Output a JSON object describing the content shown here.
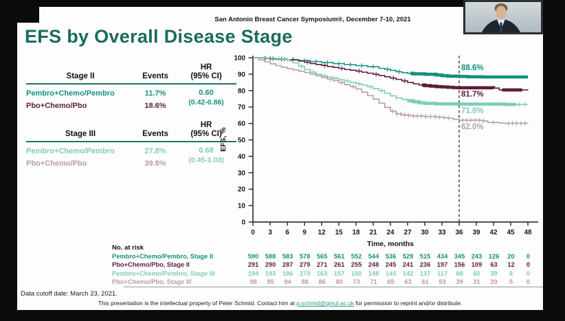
{
  "conference_header": "San Antonio Breast Cancer Symposium®, December 7-10, 2021",
  "slide_title": "EFS by Overall Disease Stage",
  "colors": {
    "title_teal": "#1a6b5e",
    "pembro_stage2": "#12917e",
    "pbo_stage2": "#5a1f3c",
    "pembro_stage3": "#7fccb8",
    "pbo_stage3": "#b49dab",
    "link": "#24a08d"
  },
  "hr_tables": [
    {
      "stage_label": "Stage II",
      "events_header": "Events",
      "hr_header_line1": "HR",
      "hr_header_line2": "(95% CI)",
      "rows": [
        {
          "label": "Pembro+Chemo/Pembro",
          "events": "11.7%",
          "color": "#12917e"
        },
        {
          "label": "Pbo+Chemo/Pbo",
          "events": "18.6%",
          "color": "#5a1f3c"
        }
      ],
      "hr_value": "0.60",
      "hr_ci": "(0.42-0.86)",
      "hr_color": "#12917e"
    },
    {
      "stage_label": "Stage III",
      "events_header": "Events",
      "hr_header_line1": "HR",
      "hr_header_line2": "(95% CI)",
      "rows": [
        {
          "label": "Pembro+Chemo/Pembro",
          "events": "27.8%",
          "color": "#7fccb8"
        },
        {
          "label": "Pbo+Chemo/Pbo",
          "events": "39.8%",
          "color": "#b49dab"
        }
      ],
      "hr_value": "0.68",
      "hr_ci": "(0.45-1.03)",
      "hr_color": "#7fccb8"
    }
  ],
  "chart_data": {
    "type": "line",
    "subtype": "kaplan_meier_step",
    "title": "",
    "xlabel": "Time, months",
    "ylabel": "EFS, %",
    "xlim": [
      0,
      48
    ],
    "ylim": [
      0,
      100
    ],
    "xticks": [
      0,
      3,
      6,
      9,
      12,
      15,
      18,
      21,
      24,
      27,
      30,
      33,
      36,
      39,
      42,
      45,
      48
    ],
    "yticks": [
      0,
      10,
      20,
      30,
      40,
      50,
      60,
      70,
      80,
      90,
      100
    ],
    "grid": false,
    "reference_line_x": 36,
    "series": [
      {
        "name": "Pembro+Chemo/Pembro, Stage II",
        "color": "#12917e",
        "rate_at_36": 88.6,
        "rate_label": "88.6%",
        "label_side": "above",
        "points": [
          [
            0,
            100
          ],
          [
            2,
            99.7
          ],
          [
            3,
            99.4
          ],
          [
            5,
            99.1
          ],
          [
            6,
            98.8
          ],
          [
            8,
            98.3
          ],
          [
            10,
            97.7
          ],
          [
            12,
            97.1
          ],
          [
            14,
            96.4
          ],
          [
            16,
            95.8
          ],
          [
            18,
            95.2
          ],
          [
            20,
            94.5
          ],
          [
            22,
            93.5
          ],
          [
            23,
            93
          ],
          [
            24,
            92.3
          ],
          [
            25,
            91.5
          ],
          [
            26,
            90.9
          ],
          [
            27,
            90.5
          ],
          [
            28,
            90.2
          ],
          [
            30,
            89.9
          ],
          [
            32,
            89.5
          ],
          [
            33,
            89.1
          ],
          [
            34,
            88.8
          ],
          [
            36,
            88.6
          ],
          [
            37.5,
            88.4
          ],
          [
            40,
            88.3
          ],
          [
            48,
            88.3
          ]
        ],
        "censor_ticks": [
          2.2,
          3.5,
          4.5,
          5.5,
          7,
          9,
          11,
          13,
          15,
          17,
          19,
          21,
          23.5,
          25.5
        ],
        "thick_segments": [
          [
            27.5,
            48
          ]
        ]
      },
      {
        "name": "Pbo+Chemo/Pbo, Stage II",
        "color": "#5a1f3c",
        "rate_at_36": 81.7,
        "rate_label": "81.7%",
        "label_side": "below",
        "points": [
          [
            0,
            100
          ],
          [
            2,
            99.6
          ],
          [
            4,
            99.2
          ],
          [
            6,
            98.7
          ],
          [
            8,
            98
          ],
          [
            9,
            97.3
          ],
          [
            10,
            96.5
          ],
          [
            11,
            95.9
          ],
          [
            12,
            95.3
          ],
          [
            13,
            94.7
          ],
          [
            14,
            94.1
          ],
          [
            15,
            93.5
          ],
          [
            16,
            92.9
          ],
          [
            17,
            92.4
          ],
          [
            18,
            91.9
          ],
          [
            19,
            91.2
          ],
          [
            20,
            90.6
          ],
          [
            21,
            89.9
          ],
          [
            22,
            89.2
          ],
          [
            23,
            88.4
          ],
          [
            24,
            87.6
          ],
          [
            25,
            86.8
          ],
          [
            26,
            85.9
          ],
          [
            27,
            85
          ],
          [
            28,
            84.1
          ],
          [
            29,
            83.4
          ],
          [
            30,
            83
          ],
          [
            31,
            82.7
          ],
          [
            32,
            82.4
          ],
          [
            33,
            82.2
          ],
          [
            34,
            82
          ],
          [
            35,
            81.8
          ],
          [
            36,
            81.7
          ],
          [
            42,
            81.5
          ],
          [
            43,
            80.4
          ],
          [
            48,
            80.3
          ]
        ],
        "censor_ticks": [
          3,
          5,
          7,
          9.5,
          12.5,
          15.5,
          18.5,
          21.5,
          24.5,
          26.5
        ],
        "thick_segments": [
          [
            29.5,
            42
          ],
          [
            43.5,
            47
          ]
        ]
      },
      {
        "name": "Pembro+Chemo/Pembro, Stage III",
        "color": "#7fccb8",
        "rate_at_36": 71.8,
        "rate_label": "71.8%",
        "label_side": "below",
        "points": [
          [
            0,
            100
          ],
          [
            2,
            99.8
          ],
          [
            4,
            99.5
          ],
          [
            5,
            99.2
          ],
          [
            6,
            98.8
          ],
          [
            6.5,
            98
          ],
          [
            7,
            96.8
          ],
          [
            8,
            94.8
          ],
          [
            9,
            92.8
          ],
          [
            10,
            91.2
          ],
          [
            11,
            90
          ],
          [
            12,
            89
          ],
          [
            13,
            88.2
          ],
          [
            14,
            87.4
          ],
          [
            15,
            86.6
          ],
          [
            16,
            85.8
          ],
          [
            17,
            85
          ],
          [
            18,
            84.2
          ],
          [
            19,
            83.4
          ],
          [
            20,
            82.4
          ],
          [
            21,
            81.2
          ],
          [
            22,
            80
          ],
          [
            23,
            78.4
          ],
          [
            24,
            76.8
          ],
          [
            25,
            75.6
          ],
          [
            26,
            74.6
          ],
          [
            27,
            73.8
          ],
          [
            28,
            73.2
          ],
          [
            29,
            72.6
          ],
          [
            30,
            72.2
          ],
          [
            32,
            71.9
          ],
          [
            36,
            71.8
          ],
          [
            44,
            71.6
          ],
          [
            48,
            71.5
          ]
        ],
        "censor_ticks": [
          2,
          4.5,
          6,
          8.5,
          10.5,
          12.5,
          14.5,
          16.5,
          18.5,
          20.5,
          22.5,
          25,
          46.5,
          47.5
        ],
        "thick_segments": [
          [
            27,
            46
          ]
        ]
      },
      {
        "name": "Pbo+Chemo/Pbo, Stage III",
        "color": "#b49dab",
        "rate_at_36": 62.0,
        "rate_label": "62.0%",
        "label_side": "below",
        "points": [
          [
            0,
            100
          ],
          [
            1,
            98.8
          ],
          [
            2,
            97.5
          ],
          [
            3,
            96.3
          ],
          [
            4,
            95.2
          ],
          [
            5,
            94.2
          ],
          [
            6,
            93.4
          ],
          [
            7,
            92.6
          ],
          [
            8,
            91.8
          ],
          [
            9,
            91
          ],
          [
            10,
            90
          ],
          [
            11,
            89
          ],
          [
            12,
            88
          ],
          [
            13,
            87
          ],
          [
            14,
            86
          ],
          [
            15,
            84.8
          ],
          [
            16,
            83.6
          ],
          [
            17,
            82.4
          ],
          [
            18,
            81
          ],
          [
            19,
            79
          ],
          [
            20,
            77
          ],
          [
            21,
            74.8
          ],
          [
            22,
            72.4
          ],
          [
            23,
            69.8
          ],
          [
            24,
            67.4
          ],
          [
            25,
            65.8
          ],
          [
            26,
            65.2
          ],
          [
            27,
            64.8
          ],
          [
            28,
            64.5
          ],
          [
            30,
            64.2
          ],
          [
            32,
            63.9
          ],
          [
            33,
            63.6
          ],
          [
            34,
            63.2
          ],
          [
            35,
            62.5
          ],
          [
            36,
            62
          ],
          [
            40,
            61.5
          ],
          [
            41,
            60.6
          ],
          [
            43,
            60.3
          ],
          [
            44,
            60.1
          ],
          [
            48,
            60
          ]
        ],
        "censor_ticks": [
          13.5,
          15.5,
          17.5,
          24.4,
          25.1,
          25.8,
          26.5,
          27.2,
          28,
          28.7,
          29.4,
          30.2,
          31,
          31.8,
          32.6,
          33.4,
          34.2,
          36.6,
          37.3,
          38,
          38.8,
          39.5,
          40.3,
          42,
          44.6,
          45.3,
          46,
          46.8,
          47.5
        ],
        "thick_segments": []
      }
    ]
  },
  "risk_table": {
    "title": "No. at risk",
    "timepoints": [
      0,
      3,
      6,
      9,
      12,
      15,
      18,
      21,
      24,
      27,
      30,
      33,
      36,
      39,
      42,
      45,
      48
    ],
    "rows": [
      {
        "label": "Pembro+Chemo/Pembro, Stage II",
        "color": "#12917e",
        "counts": [
          590,
          588,
          583,
          578,
          565,
          561,
          552,
          544,
          536,
          529,
          515,
          434,
          345,
          243,
          126,
          20,
          0
        ]
      },
      {
        "label": "Pbo+Chemo/Pbo, Stage II",
        "color": "#5a1f3c",
        "counts": [
          291,
          290,
          287,
          279,
          271,
          261,
          255,
          248,
          245,
          241,
          236,
          197,
          156,
          109,
          63,
          12,
          0
        ]
      },
      {
        "label": "Pembro+Chemo/Pembro, Stage III",
        "color": "#7fccb8",
        "counts": [
          194,
          193,
          186,
          173,
          163,
          157,
          150,
          148,
          145,
          142,
          137,
          117,
          88,
          60,
          39,
          8,
          0
        ]
      },
      {
        "label": "Pbo+Chemo/Pbo, Stage III",
        "color": "#b49dab",
        "counts": [
          98,
          95,
          94,
          88,
          86,
          80,
          73,
          71,
          65,
          63,
          61,
          53,
          39,
          31,
          20,
          5,
          0
        ]
      }
    ]
  },
  "cutoff_note": "Data cutoff date: March 23, 2021.",
  "footer": {
    "note_pre": "This presentation is the intellectual property of Peter Schmid. Contact him at ",
    "email": "p.schmid@qmul.ac.uk",
    "note_post": " for permission to reprint and/or distribute."
  }
}
